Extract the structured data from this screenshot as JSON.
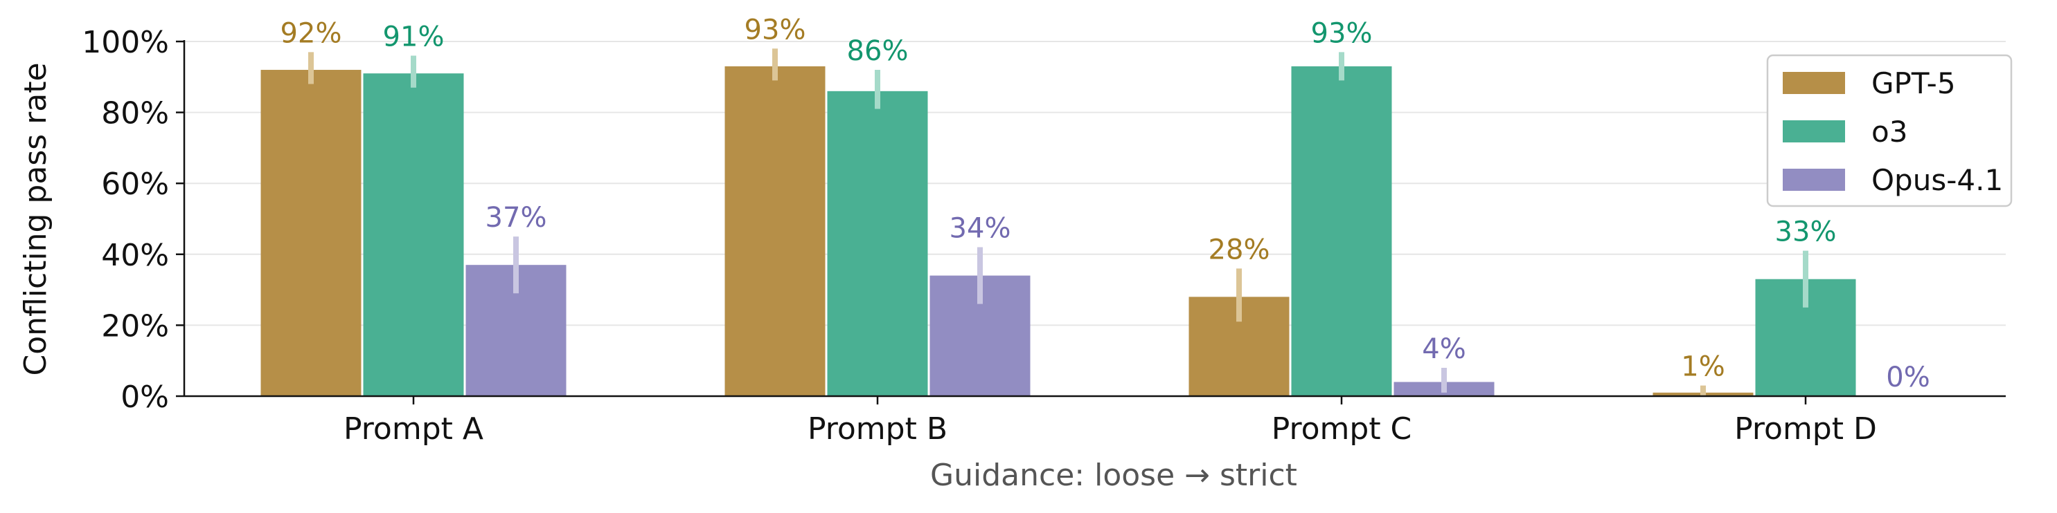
{
  "chart_data": {
    "type": "bar",
    "title": "",
    "xlabel": "Guidance: loose → strict",
    "ylabel": "Conflicting pass rate",
    "ylim": [
      0,
      100
    ],
    "yticks": [
      0,
      20,
      40,
      60,
      80,
      100
    ],
    "ytick_labels": [
      "0%",
      "20%",
      "40%",
      "60%",
      "80%",
      "100%"
    ],
    "categories": [
      "Prompt A",
      "Prompt B",
      "Prompt C",
      "Prompt D"
    ],
    "series": [
      {
        "name": "GPT-5",
        "color": "#b68f48",
        "label_color": "#a47c24",
        "err_color": "#dcc596",
        "values": [
          92,
          93,
          28,
          1
        ],
        "labels": [
          "92%",
          "93%",
          "28%",
          "1%"
        ],
        "err_low": [
          88,
          89,
          21,
          0
        ],
        "err_high": [
          97,
          98,
          36,
          3
        ]
      },
      {
        "name": "o3",
        "color": "#4ab093",
        "label_color": "#13966e",
        "err_color": "#a5dac9",
        "values": [
          91,
          86,
          93,
          33
        ],
        "labels": [
          "91%",
          "86%",
          "93%",
          "33%"
        ],
        "err_low": [
          87,
          81,
          89,
          25
        ],
        "err_high": [
          96,
          92,
          97,
          41
        ]
      },
      {
        "name": "Opus-4.1",
        "color": "#928dc2",
        "label_color": "#726ab0",
        "err_color": "#c9c6e1",
        "values": [
          37,
          34,
          4,
          0
        ],
        "labels": [
          "37%",
          "34%",
          "4%",
          "0%"
        ],
        "err_low": [
          29,
          26,
          1,
          0
        ],
        "err_high": [
          45,
          42,
          8,
          0
        ]
      }
    ],
    "grid": true,
    "legend": "top-right"
  }
}
